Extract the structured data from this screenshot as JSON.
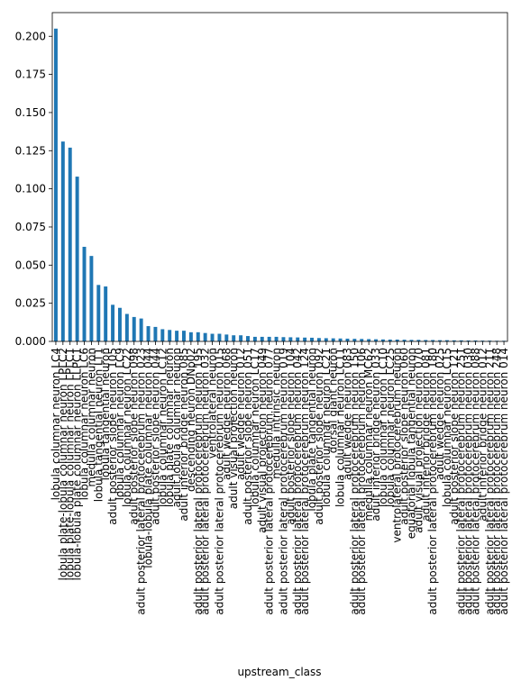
{
  "chart_data": {
    "type": "bar",
    "x_label": "upstream_class",
    "color": "#1f77b4",
    "categories": [
      "lobula columnar neuron LC4",
      "lobula plate-lobula columnar neuron LPLC2",
      "lobula plate-lobula columnar neuron LPLC1",
      "lobula-lobula plate columnar neuron LLPC1",
      "lobula columnar neuron LC6",
      "medulla columnar neuron",
      "lobula tangential neuron LT1",
      "lobula tangential neuron",
      "adult posterior slope neuron 105",
      "lobula columnar neuron LC9",
      "lobula columnar neuron LC22",
      "adult posterior slope neuron 098",
      "adult posterior lateral protocerebrum neuron 023",
      "lobula-lobula plate columnar neuron 044",
      "adult posterior slope neuron 044",
      "lobula columnar neuron LC12",
      "lobula plate columnar neuron",
      "adult lobula columnar neuron",
      "adult inferior bridge neuron 085",
      "descending neuron DNp02",
      "adult posterior lateral protocerebrum neuron 195",
      "adult posterior lateral protocerebrum neuron 032",
      "ventrolateral neuron",
      "adult posterior lateral protocerebrum neuron 015",
      "adult wedge neuron 068",
      "adult visual projection neuron",
      "adult wedge neuron 012",
      "adult posterior slope neuron 051",
      "lobula columnar neuron LC17",
      "adult visual projection neuron 049",
      "adult posterior lateral protocerebrum neuron 077",
      "medulla intrinsic neuron",
      "adult posterior lateral protocerebrum neuron 019",
      "adult posterior slope neuron 104",
      "adult posterior lateral protocerebrum neuron 042",
      "adult posterior lateral protocerebrum neuron 124",
      "lobula plate tangential neuron",
      "adult posterior slope neuron 092",
      "lobula columnar neuron LC21",
      "dorsal giant neuron",
      "lobula columnar neuron LC11",
      "adult wedge neuron 083",
      "adult posterior lateral protocerebrum neuron 150",
      "adult posterior lateral protocerebrum neuron 106",
      "medulla columnar neuron MC62",
      "adult inferior bridge neuron 033",
      "lobula columnar neuron LC10",
      "lobula columnar neuron LC25",
      "ventrolateral protocerebrum neuron",
      "adult posterior slope neuron 060",
      "equatorial lobula tangential neuron",
      "adult visual projection neuron 070",
      "adult inferior bridge neuron 081",
      "adult posterior lateral protocerebrum neuron 180",
      "adult wedge neuron 025",
      "lobula columnar neuron LC15",
      "adult posterior slope neuron 121",
      "adult posterior lateral protocerebrum neuron 251",
      "adult posterior lateral protocerebrum neuron 030",
      "adult posterior lateral protocerebrum neuron 088",
      "adult inferior bridge neuron 012",
      "adult posterior lateral protocerebrum neuron 211",
      "adult posterior lateral protocerebrum neuron 248",
      "adult posterior lateral protocerebrum neuron 014"
    ],
    "values": [
      0.205,
      0.131,
      0.127,
      0.108,
      0.062,
      0.056,
      0.037,
      0.036,
      0.024,
      0.022,
      0.018,
      0.016,
      0.015,
      0.01,
      0.0095,
      0.008,
      0.0075,
      0.007,
      0.007,
      0.006,
      0.006,
      0.0055,
      0.005,
      0.005,
      0.0045,
      0.004,
      0.004,
      0.0035,
      0.003,
      0.003,
      0.003,
      0.003,
      0.0028,
      0.0027,
      0.0026,
      0.0025,
      0.0024,
      0.0022,
      0.0021,
      0.002,
      0.0019,
      0.0018,
      0.0017,
      0.0016,
      0.0015,
      0.0014,
      0.0013,
      0.0012,
      0.0012,
      0.0011,
      0.001,
      0.001,
      0.0009,
      0.0009,
      0.0008,
      0.0008,
      0.0007,
      0.0007,
      0.0006,
      0.0006,
      0.0005,
      0.0005,
      0.0004,
      0.0004
    ],
    "ylim": [
      0,
      0.2155
    ],
    "yticks": [
      {
        "value": 0,
        "label": "0.000"
      },
      {
        "value": 0.025,
        "label": "0.025"
      },
      {
        "value": 0.05,
        "label": "0.050"
      },
      {
        "value": 0.075,
        "label": "0.075"
      },
      {
        "value": 0.1,
        "label": "0.100"
      },
      {
        "value": 0.125,
        "label": "0.125"
      },
      {
        "value": 0.15,
        "label": "0.150"
      },
      {
        "value": 0.175,
        "label": "0.175"
      },
      {
        "value": 0.2,
        "label": "0.200"
      }
    ]
  }
}
